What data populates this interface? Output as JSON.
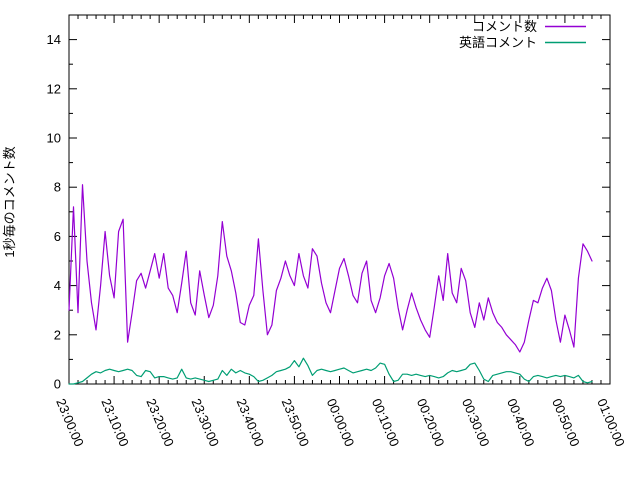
{
  "colors": {
    "background": "#ffffff",
    "axis": "#000000",
    "series_comments": "#9400d3",
    "series_english": "#009e73"
  },
  "legend": {
    "entries": [
      {
        "label": "コメント数",
        "color": "#9400d3"
      },
      {
        "label": "英語コメント",
        "color": "#009e73"
      }
    ]
  },
  "chart_data": {
    "type": "line",
    "title": "",
    "xlabel": "",
    "ylabel": "1秒毎のコメント数",
    "ylim": [
      0,
      15
    ],
    "ytick_major_interval": 2,
    "ytick_minor_interval": 1,
    "ytick_labels": [
      "0",
      "2",
      "4",
      "6",
      "8",
      "10",
      "12",
      "14"
    ],
    "x_range_minutes": [
      0,
      120
    ],
    "xtick_major_interval_minutes": 10,
    "xtick_minor_interval_minutes": 2,
    "xtick_labels": [
      "23:00:00",
      "23:10:00",
      "23:20:00",
      "23:30:00",
      "23:40:00",
      "23:50:00",
      "00:00:00",
      "00:10:00",
      "00:20:00",
      "00:30:00",
      "00:40:00",
      "00:50:00",
      "01:00:00"
    ],
    "grid": false,
    "legend_position": "top-right-inside",
    "sample_interval_minutes": 1,
    "series": [
      {
        "name": "コメント数",
        "color": "#9400d3",
        "start_minute": 0,
        "values": [
          3.0,
          7.2,
          2.9,
          8.1,
          5.0,
          3.3,
          2.2,
          4.0,
          6.2,
          4.4,
          3.5,
          6.2,
          6.7,
          1.7,
          2.9,
          4.2,
          4.5,
          3.9,
          4.6,
          5.3,
          4.3,
          5.3,
          3.9,
          3.6,
          2.9,
          4.1,
          5.4,
          3.3,
          2.8,
          4.6,
          3.6,
          2.7,
          3.2,
          4.4,
          6.6,
          5.2,
          4.6,
          3.7,
          2.5,
          2.4,
          3.2,
          3.6,
          5.9,
          3.8,
          2.0,
          2.4,
          3.8,
          4.3,
          5.0,
          4.4,
          4.0,
          5.3,
          4.4,
          3.9,
          5.5,
          5.2,
          4.1,
          3.3,
          2.9,
          3.8,
          4.7,
          5.1,
          4.4,
          3.6,
          3.3,
          4.5,
          5.0,
          3.4,
          2.9,
          3.5,
          4.4,
          4.9,
          4.3,
          3.1,
          2.2,
          3.0,
          3.7,
          3.1,
          2.6,
          2.2,
          1.9,
          3.1,
          4.4,
          3.4,
          5.3,
          3.7,
          3.3,
          4.7,
          4.2,
          2.9,
          2.3,
          3.3,
          2.6,
          3.5,
          2.9,
          2.5,
          2.3,
          2.0,
          1.8,
          1.6,
          1.3,
          1.7,
          2.6,
          3.4,
          3.3,
          3.9,
          4.3,
          3.8,
          2.6,
          1.7,
          2.8,
          2.2,
          1.5,
          4.3,
          5.7,
          5.4,
          5.0
        ]
      },
      {
        "name": "英語コメント",
        "color": "#009e73",
        "start_minute": 0,
        "values": [
          0.0,
          0.0,
          0.05,
          0.1,
          0.25,
          0.4,
          0.5,
          0.45,
          0.55,
          0.6,
          0.55,
          0.5,
          0.55,
          0.6,
          0.55,
          0.35,
          0.3,
          0.55,
          0.5,
          0.25,
          0.3,
          0.3,
          0.25,
          0.2,
          0.25,
          0.6,
          0.25,
          0.2,
          0.25,
          0.2,
          0.15,
          0.1,
          0.15,
          0.2,
          0.55,
          0.35,
          0.6,
          0.45,
          0.55,
          0.45,
          0.4,
          0.3,
          0.1,
          0.15,
          0.25,
          0.35,
          0.5,
          0.55,
          0.6,
          0.7,
          0.95,
          0.7,
          1.05,
          0.75,
          0.35,
          0.55,
          0.6,
          0.55,
          0.5,
          0.55,
          0.6,
          0.65,
          0.55,
          0.45,
          0.5,
          0.55,
          0.6,
          0.55,
          0.65,
          0.85,
          0.8,
          0.4,
          0.1,
          0.15,
          0.4,
          0.4,
          0.35,
          0.4,
          0.35,
          0.3,
          0.35,
          0.3,
          0.25,
          0.3,
          0.45,
          0.55,
          0.5,
          0.55,
          0.6,
          0.8,
          0.85,
          0.55,
          0.2,
          0.1,
          0.35,
          0.4,
          0.45,
          0.5,
          0.5,
          0.45,
          0.4,
          0.2,
          0.1,
          0.3,
          0.35,
          0.3,
          0.25,
          0.3,
          0.35,
          0.3,
          0.35,
          0.3,
          0.25,
          0.35,
          0.1,
          0.05,
          0.1
        ]
      }
    ]
  }
}
